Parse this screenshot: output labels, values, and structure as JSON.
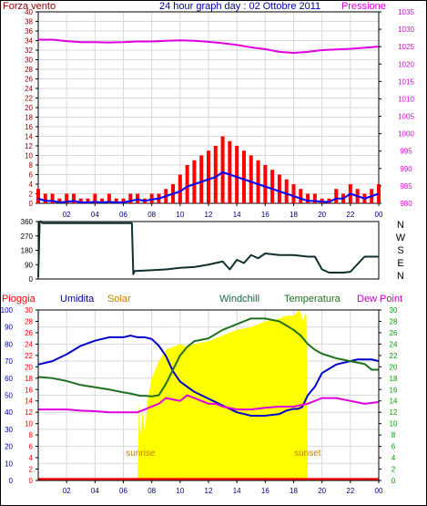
{
  "header": {
    "left_label": "Forza vento",
    "title": "24 hour graph day : 02 Ottobre 2011",
    "right_label": "Pressione"
  },
  "bottom_labels": {
    "pioggia": "Pioggia",
    "umidita": "Umidita",
    "solar": "Solar",
    "windchill": "Windchill",
    "temperatura": "Temperatura",
    "dewpoint": "Dew Point",
    "sunrise": "sunrise",
    "sunset": "sunset"
  },
  "colors": {
    "wind": "#ff0000",
    "gust": "#ff0000",
    "avgwind": "#0000ff",
    "pressure": "#e000e0",
    "direction": "#103030",
    "humidity": "#0000cc",
    "solar": "#ffff00",
    "temperature": "#207020",
    "dewpoint": "#e000e0",
    "windchill": "#1a6a40",
    "rain": "#ff0000",
    "frame": "#000000",
    "label_dark": "#8b0000",
    "label_green": "#00a000",
    "label_orange": "#c08000"
  },
  "chart_data": [
    {
      "type": "line",
      "name": "wind_and_pressure",
      "x_ticks": [
        "02",
        "04",
        "06",
        "08",
        "10",
        "12",
        "14",
        "16",
        "18",
        "20",
        "22",
        "00"
      ],
      "x_hours": [
        2,
        4,
        6,
        8,
        10,
        12,
        14,
        16,
        18,
        20,
        22,
        24
      ],
      "y_left_ticks": [
        "0",
        "2",
        "4",
        "6",
        "8",
        "10",
        "12",
        "14",
        "16",
        "18",
        "20",
        "22",
        "24",
        "26",
        "28",
        "30",
        "32",
        "34",
        "36",
        "38",
        "40"
      ],
      "y_right_ticks": [
        "980",
        "985",
        "990",
        "995",
        "1000",
        "1005",
        "1010",
        "1015",
        "1020",
        "1025",
        "1030",
        "1035"
      ],
      "ylim_left": [
        0,
        40
      ],
      "ylim_right": [
        980,
        1035
      ],
      "series": [
        {
          "x": [
            0,
            0.5,
            1,
            1.5,
            2,
            2.5,
            3,
            3.5,
            4,
            4.5,
            5,
            5.5,
            6,
            6.5,
            7,
            7.5,
            8,
            8.5,
            9,
            9.5,
            10,
            10.5,
            11,
            11.5,
            12,
            12.5,
            13,
            13.5,
            14,
            14.5,
            15,
            15.5,
            16,
            16.5,
            17,
            17.5,
            18,
            18.5,
            19,
            19.5,
            20,
            20.5,
            21,
            21.5,
            22,
            22.5,
            23,
            23.5,
            24
          ],
          "values": [
            3,
            2,
            2,
            1,
            2,
            2,
            1,
            1,
            2,
            1,
            2,
            1,
            1,
            2,
            2,
            1,
            2,
            2,
            3,
            4,
            6,
            8,
            9,
            10,
            11,
            12,
            14,
            13,
            12,
            11,
            10,
            9,
            8,
            7,
            6,
            5,
            4,
            3,
            2,
            2,
            1,
            1,
            3,
            2,
            4,
            3,
            2,
            3,
            4
          ]
        },
        {
          "x": [
            0,
            0.5,
            1,
            1.5,
            2,
            2.5,
            3,
            3.5,
            4,
            4.5,
            5,
            5.5,
            6,
            6.5,
            7,
            7.5,
            8,
            8.5,
            9,
            9.5,
            10,
            10.5,
            11,
            11.5,
            12,
            12.5,
            13,
            13.5,
            14,
            14.5,
            15,
            15.5,
            16,
            16.5,
            17,
            17.5,
            18,
            18.5,
            19,
            19.5,
            20,
            20.5,
            21,
            21.5,
            22,
            22.5,
            23,
            23.5,
            24
          ],
          "values": [
            1,
            0.5,
            0.5,
            0.2,
            0.3,
            0.5,
            0.2,
            0.2,
            0.3,
            0.2,
            0.3,
            0.2,
            0.2,
            0.5,
            0.8,
            0.5,
            0.8,
            1,
            1.5,
            2,
            2.5,
            3.5,
            4,
            4.5,
            5,
            5.5,
            6.5,
            6,
            5.5,
            5,
            4.5,
            4,
            3.5,
            3,
            2.5,
            2,
            1.5,
            1,
            0.5,
            0.5,
            0.3,
            0.3,
            1,
            1,
            2,
            1.5,
            1,
            1.5,
            2
          ]
        },
        {
          "x": [
            0,
            1,
            2,
            3,
            4,
            5,
            6,
            7,
            8,
            9,
            10,
            11,
            12,
            13,
            14,
            15,
            16,
            17,
            18,
            19,
            20,
            21,
            22,
            23,
            24
          ],
          "values": [
            1027,
            1027,
            1026.6,
            1026.3,
            1026.3,
            1026.2,
            1026.3,
            1026.5,
            1026.5,
            1026.7,
            1026.8,
            1026.7,
            1026.4,
            1026,
            1025.5,
            1024.8,
            1024.3,
            1023.5,
            1023.2,
            1023.5,
            1024,
            1024.2,
            1024.4,
            1024.7,
            1025
          ]
        }
      ]
    },
    {
      "type": "line",
      "name": "wind_direction",
      "y_ticks": [
        "0",
        "90",
        "180",
        "270",
        "360"
      ],
      "direction_labels": [
        "N",
        "W",
        "S",
        "E",
        "N"
      ],
      "ylim": [
        0,
        360
      ],
      "series": [
        {
          "x": [
            0,
            0.1,
            0.2,
            0.3,
            6.6,
            6.7,
            6.8,
            8,
            9,
            10,
            11,
            12,
            13,
            13.5,
            14,
            14.5,
            15,
            15.5,
            16,
            17,
            18,
            19,
            19.5,
            20,
            20.5,
            21,
            21.5,
            22,
            23,
            24
          ],
          "values": [
            10,
            360,
            360,
            350,
            350,
            30,
            50,
            55,
            60,
            70,
            75,
            90,
            110,
            60,
            120,
            100,
            150,
            130,
            160,
            150,
            150,
            140,
            140,
            60,
            40,
            40,
            40,
            45,
            140,
            140
          ]
        }
      ]
    },
    {
      "type": "area",
      "name": "weather_bottom",
      "x_ticks": [
        "02",
        "04",
        "06",
        "08",
        "10",
        "12",
        "14",
        "16",
        "18",
        "20",
        "22",
        "00"
      ],
      "x_hours": [
        2,
        4,
        6,
        8,
        10,
        12,
        14,
        16,
        18,
        20,
        22,
        24
      ],
      "y_humidity_ticks": [
        "0",
        "10",
        "20",
        "30",
        "40",
        "50",
        "60",
        "70",
        "80",
        "90",
        "100"
      ],
      "y_rain_ticks": [
        "0",
        "2",
        "4",
        "6",
        "8",
        "10",
        "12",
        "14",
        "16",
        "18",
        "20",
        "22",
        "24",
        "26",
        "28",
        "30"
      ],
      "y_temp_ticks": [
        "0",
        "2",
        "4",
        "6",
        "8",
        "10",
        "12",
        "14",
        "16",
        "18",
        "20",
        "22",
        "24",
        "26",
        "28",
        "30"
      ],
      "ylim_humidity": [
        0,
        100
      ],
      "ylim_temp": [
        0,
        30
      ],
      "ylim_solar": [
        0,
        30
      ],
      "sunrise_hour": 7.2,
      "sunset_hour": 19.0,
      "series": [
        {
          "x": [
            0,
            1,
            2,
            3,
            4,
            5,
            6,
            6.5,
            7,
            7.5,
            8,
            8.5,
            9,
            9.5,
            10,
            10.5,
            11,
            11.5,
            12,
            13,
            14,
            15,
            16,
            17,
            17.5,
            18,
            18.3,
            18.6,
            19,
            19.5,
            20,
            21,
            22,
            22.5,
            23,
            23.5,
            24
          ],
          "values": [
            68,
            70,
            74,
            79,
            82,
            84,
            84,
            85,
            84,
            84,
            83,
            79,
            73,
            64,
            58,
            55,
            52,
            50,
            48,
            44,
            40,
            38,
            38,
            39,
            41,
            42,
            42,
            43,
            50,
            55,
            63,
            68,
            70,
            71,
            71,
            71,
            70
          ]
        },
        {
          "x": [
            0,
            1,
            2,
            3,
            4,
            5,
            6,
            6.5,
            7,
            7.2,
            7.5,
            8,
            8.5,
            9,
            9.5,
            10,
            10.5,
            11,
            12,
            13,
            14,
            15,
            16,
            17,
            18,
            18.5,
            19,
            19.5,
            20,
            21,
            22,
            23,
            23.5,
            24
          ],
          "values": [
            18.2,
            18,
            17.5,
            16.8,
            16.4,
            16,
            15.5,
            15.3,
            15,
            14.9,
            14.9,
            14.8,
            15,
            17,
            19.5,
            22,
            23.5,
            24.5,
            25,
            26.5,
            27.5,
            28.5,
            28.5,
            28,
            26.5,
            25.5,
            24,
            23,
            22.3,
            21.5,
            21,
            20.5,
            19.5,
            19.5
          ]
        },
        {
          "x": [
            0,
            1,
            2,
            3,
            4,
            5,
            6,
            7,
            7.5,
            8,
            8.5,
            9,
            10,
            10.5,
            11,
            11.5,
            12,
            12.5,
            13,
            14,
            15,
            16,
            17,
            18,
            19,
            19.5,
            20,
            21,
            22,
            23,
            24
          ],
          "values": [
            12.5,
            12.5,
            12.5,
            12.3,
            12.2,
            12,
            12,
            12,
            12.5,
            13,
            13.5,
            14.5,
            14,
            15,
            14.5,
            14,
            13.5,
            13.5,
            13,
            12.5,
            12.5,
            12.8,
            13,
            13,
            13.5,
            14,
            14.5,
            14.5,
            14,
            13.5,
            13.8
          ]
        },
        {
          "x": [
            7.0,
            7.1,
            7.2,
            7.35,
            7.5,
            7.6,
            7.7,
            8,
            8.5,
            9,
            9.5,
            10,
            10.5,
            11,
            12,
            13,
            14,
            15,
            16,
            17,
            17.5,
            18,
            18.4,
            18.7,
            18.8,
            18.9,
            19.0,
            19.1
          ],
          "values": [
            0,
            14,
            8,
            12,
            9,
            11,
            14,
            18,
            21,
            23,
            23.5,
            24,
            23.5,
            24,
            24.5,
            25.5,
            26.5,
            27,
            28,
            28.5,
            29,
            29,
            30,
            28,
            29.5,
            29,
            0,
            0
          ]
        },
        {
          "x": [
            0,
            24
          ],
          "values": [
            0.2,
            0.2
          ]
        }
      ]
    }
  ]
}
